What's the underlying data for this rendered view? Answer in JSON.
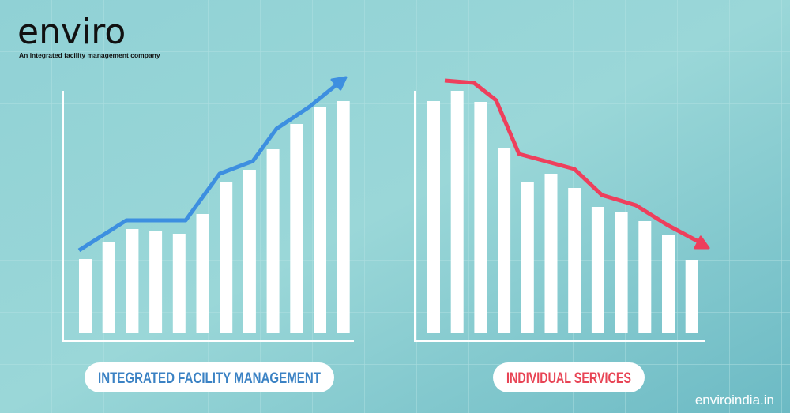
{
  "header": {
    "logo": "enviro",
    "tagline": "An integrated facility management company"
  },
  "footer": {
    "url": "enviroindia.in"
  },
  "chart_data": [
    {
      "type": "bar",
      "title": "INTEGRATED FACILITY MANAGEMENT",
      "color": "#ffffff",
      "title_color": "#3b82c4",
      "trend_color": "#3d8fe0",
      "values": [
        94,
        116,
        132,
        130,
        126,
        151,
        192,
        207,
        233,
        265,
        286,
        294
      ],
      "ylim": [
        0,
        310
      ]
    },
    {
      "type": "bar",
      "title": "INDIVIDUAL SERVICES",
      "color": "#ffffff",
      "title_color": "#e84455",
      "trend_color": "#ee3f5c",
      "values": [
        294,
        307,
        293,
        235,
        192,
        202,
        184,
        160,
        153,
        142,
        124,
        93
      ],
      "ylim": [
        0,
        310
      ]
    }
  ]
}
